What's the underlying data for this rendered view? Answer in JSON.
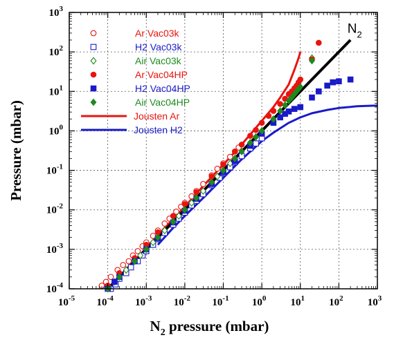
{
  "chart_data": {
    "type": "scatter",
    "title": "",
    "xlabel": {
      "main": "N",
      "sub": "2",
      "rest": " pressure (mbar)"
    },
    "ylabel": "Pressure (mbar)",
    "xscale": "log",
    "yscale": "log",
    "xlim": [
      1e-05,
      1000
    ],
    "ylim": [
      0.0001,
      1000
    ],
    "grid": true,
    "legend_position": "top-left",
    "x_ticks": [
      {
        "value": 1e-05,
        "base": "10",
        "exp": "-5"
      },
      {
        "value": 0.0001,
        "base": "10",
        "exp": "-4"
      },
      {
        "value": 0.001,
        "base": "10",
        "exp": "-3"
      },
      {
        "value": 0.01,
        "base": "10",
        "exp": "-2"
      },
      {
        "value": 0.1,
        "base": "10",
        "exp": "-1"
      },
      {
        "value": 1,
        "base": "10",
        "exp": "0"
      },
      {
        "value": 10,
        "base": "10",
        "exp": "1"
      },
      {
        "value": 100,
        "base": "10",
        "exp": "2"
      },
      {
        "value": 1000,
        "base": "10",
        "exp": "3"
      }
    ],
    "y_ticks": [
      {
        "value": 0.0001,
        "base": "10",
        "exp": "-4"
      },
      {
        "value": 0.001,
        "base": "10",
        "exp": "-3"
      },
      {
        "value": 0.01,
        "base": "10",
        "exp": "-2"
      },
      {
        "value": 0.1,
        "base": "10",
        "exp": "-1"
      },
      {
        "value": 1,
        "base": "10",
        "exp": "0"
      },
      {
        "value": 10,
        "base": "10",
        "exp": "1"
      },
      {
        "value": 100,
        "base": "10",
        "exp": "2"
      },
      {
        "value": 1000,
        "base": "10",
        "exp": "3"
      }
    ],
    "annotations": [
      {
        "text": "N",
        "sub": "2",
        "x": 130,
        "y": 280
      }
    ],
    "series": [
      {
        "name": "Ar Vac03k",
        "color": "#e8140f",
        "marker": "circle-open",
        "points": [
          [
            7e-05,
            0.00012
          ],
          [
            9e-05,
            0.00015
          ],
          [
            0.00012,
            0.0002
          ],
          [
            0.00018,
            0.0003
          ],
          [
            0.00025,
            0.0004
          ],
          [
            0.00035,
            0.0005
          ],
          [
            0.00045,
            0.0007
          ],
          [
            0.0006,
            0.0009
          ],
          [
            0.0008,
            0.0012
          ],
          [
            0.001,
            0.0015
          ],
          [
            0.0015,
            0.0022
          ],
          [
            0.002,
            0.003
          ],
          [
            0.003,
            0.0045
          ],
          [
            0.004,
            0.006
          ],
          [
            0.006,
            0.009
          ],
          [
            0.008,
            0.012
          ],
          [
            0.01,
            0.015
          ],
          [
            0.015,
            0.022
          ],
          [
            0.02,
            0.03
          ],
          [
            0.03,
            0.045
          ],
          [
            0.05,
            0.075
          ],
          [
            0.07,
            0.11
          ],
          [
            0.1,
            0.15
          ],
          [
            0.15,
            0.22
          ],
          [
            0.2,
            0.3
          ],
          [
            0.25,
            0.38
          ]
        ]
      },
      {
        "name": "H2 Vac03k",
        "color": "#1a1ac8",
        "marker": "square-open",
        "points": [
          [
            0.00012,
            0.0001
          ],
          [
            0.00016,
            0.00013
          ],
          [
            0.0002,
            0.00018
          ],
          [
            0.0003,
            0.00025
          ],
          [
            0.0004,
            0.00035
          ],
          [
            0.0006,
            0.0005
          ],
          [
            0.0008,
            0.0007
          ],
          [
            0.001,
            0.0009
          ],
          [
            0.0015,
            0.0013
          ],
          [
            0.002,
            0.0018
          ],
          [
            0.003,
            0.0026
          ],
          [
            0.005,
            0.0042
          ],
          [
            0.007,
            0.006
          ],
          [
            0.01,
            0.0085
          ],
          [
            0.015,
            0.013
          ],
          [
            0.02,
            0.017
          ],
          [
            0.03,
            0.025
          ],
          [
            0.05,
            0.042
          ],
          [
            0.08,
            0.065
          ],
          [
            0.1,
            0.085
          ],
          [
            0.15,
            0.12
          ],
          [
            0.2,
            0.16
          ],
          [
            0.3,
            0.23
          ],
          [
            0.5,
            0.36
          ],
          [
            0.7,
            0.48
          ],
          [
            1,
            0.65
          ]
        ]
      },
      {
        "name": "Air Vac03k",
        "color": "#1e8a1e",
        "marker": "diamond-open",
        "points": [
          [
            0.00011,
            0.00011
          ],
          [
            0.00015,
            0.00015
          ],
          [
            0.0002,
            0.0002
          ],
          [
            0.0003,
            0.0003
          ],
          [
            0.0005,
            0.0005
          ],
          [
            0.0007,
            0.0007
          ],
          [
            0.001,
            0.001
          ],
          [
            0.0015,
            0.0015
          ],
          [
            0.002,
            0.002
          ],
          [
            0.003,
            0.003
          ],
          [
            0.005,
            0.005
          ],
          [
            0.007,
            0.007
          ],
          [
            0.01,
            0.01
          ],
          [
            0.015,
            0.015
          ],
          [
            0.02,
            0.02
          ],
          [
            0.03,
            0.03
          ],
          [
            0.05,
            0.05
          ],
          [
            0.07,
            0.07
          ],
          [
            0.1,
            0.1
          ],
          [
            0.15,
            0.15
          ],
          [
            0.2,
            0.2
          ],
          [
            0.3,
            0.3
          ],
          [
            0.5,
            0.5
          ],
          [
            0.7,
            0.7
          ],
          [
            1,
            1
          ],
          [
            20,
            70
          ]
        ]
      },
      {
        "name": "Ar Vac04HP",
        "color": "#e8140f",
        "marker": "circle-filled",
        "points": [
          [
            0.0001,
            0.00012
          ],
          [
            0.0002,
            0.00025
          ],
          [
            0.0005,
            0.0006
          ],
          [
            0.001,
            0.0013
          ],
          [
            0.002,
            0.0027
          ],
          [
            0.005,
            0.007
          ],
          [
            0.01,
            0.014
          ],
          [
            0.02,
            0.028
          ],
          [
            0.05,
            0.07
          ],
          [
            0.1,
            0.14
          ],
          [
            0.2,
            0.3
          ],
          [
            0.3,
            0.45
          ],
          [
            0.5,
            0.75
          ],
          [
            0.7,
            1.05
          ],
          [
            1,
            1.6
          ],
          [
            1.5,
            2.4
          ],
          [
            2,
            3.2
          ],
          [
            3,
            4.8
          ],
          [
            4,
            6.5
          ],
          [
            5,
            8.5
          ],
          [
            6,
            10
          ],
          [
            7,
            12
          ],
          [
            8,
            14
          ],
          [
            9,
            17
          ],
          [
            10,
            20
          ],
          [
            20,
            65
          ],
          [
            30,
            170
          ]
        ]
      },
      {
        "name": "H2 Vac04HP",
        "color": "#1a1ac8",
        "marker": "square-filled",
        "points": [
          [
            0.0001,
            0.0001
          ],
          [
            0.00015,
            0.00015
          ],
          [
            0.0002,
            0.0002
          ],
          [
            0.0005,
            0.0005
          ],
          [
            0.001,
            0.001
          ],
          [
            0.002,
            0.0019
          ],
          [
            0.005,
            0.0048
          ],
          [
            0.01,
            0.0095
          ],
          [
            0.02,
            0.019
          ],
          [
            0.05,
            0.045
          ],
          [
            0.1,
            0.09
          ],
          [
            0.2,
            0.17
          ],
          [
            0.5,
            0.42
          ],
          [
            1,
            0.85
          ],
          [
            2,
            1.6
          ],
          [
            3,
            2.2
          ],
          [
            4,
            2.7
          ],
          [
            5,
            3.1
          ],
          [
            7,
            3.6
          ],
          [
            10,
            4
          ],
          [
            20,
            7
          ],
          [
            30,
            10
          ],
          [
            50,
            14
          ],
          [
            70,
            17
          ],
          [
            100,
            18
          ],
          [
            200,
            20
          ]
        ]
      },
      {
        "name": "Air Vac04HP",
        "color": "#1e8a1e",
        "marker": "diamond-filled",
        "points": [
          [
            0.0001,
            0.0001
          ],
          [
            0.0002,
            0.0002
          ],
          [
            0.0005,
            0.0005
          ],
          [
            0.001,
            0.001
          ],
          [
            0.002,
            0.002
          ],
          [
            0.005,
            0.005
          ],
          [
            0.01,
            0.01
          ],
          [
            0.02,
            0.02
          ],
          [
            0.05,
            0.05
          ],
          [
            0.1,
            0.1
          ],
          [
            0.2,
            0.2
          ],
          [
            0.3,
            0.3
          ],
          [
            0.5,
            0.5
          ],
          [
            0.7,
            0.7
          ],
          [
            1,
            1
          ],
          [
            2,
            2
          ],
          [
            3,
            3.2
          ],
          [
            4,
            4.5
          ],
          [
            5,
            5.8
          ],
          [
            6,
            7
          ],
          [
            7,
            8.5
          ],
          [
            8,
            10
          ],
          [
            9,
            11.5
          ],
          [
            10,
            13
          ],
          [
            20,
            60
          ]
        ]
      },
      {
        "name": "Jousten Ar",
        "color": "#e8140f",
        "marker": "line",
        "points": [
          [
            0.0005,
            0.0005
          ],
          [
            0.001,
            0.0011
          ],
          [
            0.003,
            0.0035
          ],
          [
            0.01,
            0.012
          ],
          [
            0.03,
            0.04
          ],
          [
            0.1,
            0.14
          ],
          [
            0.3,
            0.45
          ],
          [
            0.6,
            1
          ],
          [
            1,
            1.8
          ],
          [
            2,
            4
          ],
          [
            3,
            7
          ],
          [
            5,
            15
          ],
          [
            7,
            35
          ],
          [
            9,
            70
          ],
          [
            10,
            100
          ]
        ]
      },
      {
        "name": "Jousten H2",
        "color": "#1a1ac8",
        "marker": "line",
        "points": [
          [
            0.002,
            0.0013
          ],
          [
            0.005,
            0.0035
          ],
          [
            0.01,
            0.007
          ],
          [
            0.03,
            0.02
          ],
          [
            0.1,
            0.065
          ],
          [
            0.3,
            0.19
          ],
          [
            0.6,
            0.35
          ],
          [
            1,
            0.55
          ],
          [
            2,
            0.9
          ],
          [
            5,
            1.6
          ],
          [
            10,
            2.2
          ],
          [
            20,
            2.8
          ],
          [
            50,
            3.4
          ],
          [
            100,
            3.8
          ],
          [
            300,
            4.2
          ],
          [
            1000,
            4.4
          ]
        ]
      },
      {
        "name": "N2",
        "color": "#000000",
        "marker": "reference-line",
        "points": [
          [
            0.0001,
            0.0001
          ],
          [
            200,
            200
          ]
        ]
      }
    ],
    "legend": [
      {
        "label": "Ar Vac03k",
        "marker": "circle-open",
        "color": "#e8140f"
      },
      {
        "label": "H2 Vac03k",
        "marker": "square-open",
        "color": "#1a1ac8"
      },
      {
        "label": "Air Vac03k",
        "marker": "diamond-open",
        "color": "#1e8a1e"
      },
      {
        "label": "Ar Vac04HP",
        "marker": "circle-filled",
        "color": "#e8140f"
      },
      {
        "label": "H2 Vac04HP",
        "marker": "square-filled",
        "color": "#1a1ac8"
      },
      {
        "label": "Air Vac04HP",
        "marker": "diamond-filled",
        "color": "#1e8a1e"
      },
      {
        "label": "Jousten Ar",
        "marker": "line",
        "color": "#e8140f"
      },
      {
        "label": "Jousten H2",
        "marker": "line",
        "color": "#1a1ac8"
      }
    ]
  }
}
